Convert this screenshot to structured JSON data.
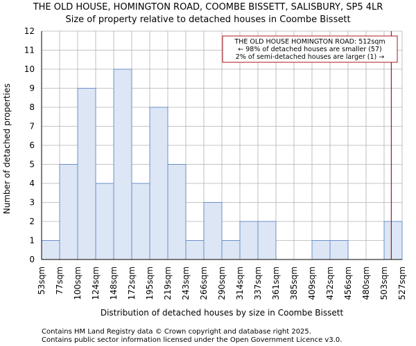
{
  "chart_data": {
    "type": "bar",
    "title": "THE OLD HOUSE, HOMINGTON ROAD, COOMBE BISSETT, SALISBURY, SP5 4LR",
    "subtitle": "Size of property relative to detached houses in Coombe Bissett",
    "xlabel": "Distribution of detached houses by size in Coombe Bissett",
    "ylabel": "Number of detached properties",
    "x_tick_labels": [
      "53sqm",
      "77sqm",
      "100sqm",
      "124sqm",
      "148sqm",
      "172sqm",
      "195sqm",
      "219sqm",
      "243sqm",
      "266sqm",
      "290sqm",
      "314sqm",
      "337sqm",
      "361sqm",
      "385sqm",
      "409sqm",
      "432sqm",
      "456sqm",
      "480sqm",
      "503sqm",
      "527sqm"
    ],
    "values": [
      1,
      5,
      9,
      4,
      10,
      4,
      8,
      5,
      1,
      3,
      1,
      2,
      2,
      0,
      0,
      1,
      1,
      0,
      0,
      2
    ],
    "ylim": [
      0,
      12
    ],
    "y_ticks": [
      0,
      1,
      2,
      3,
      4,
      5,
      6,
      7,
      8,
      9,
      10,
      11,
      12
    ],
    "grid": true,
    "property_marker": {
      "value_sqm": 512,
      "bin_position": 19.4
    },
    "annotation": {
      "lines": [
        "THE OLD HOUSE HOMINGTON ROAD: 512sqm",
        "← 98% of detached houses are smaller (57)",
        "2% of semi-detached houses are larger (1) →"
      ]
    },
    "colors": {
      "bar_fill": "#dce6f5",
      "bar_stroke": "#6b8fc7",
      "grid": "#b0b0b0",
      "marker": "#b0151c",
      "annotation_border": "#b0151c"
    }
  },
  "footer": {
    "line1": "Contains HM Land Registry data © Crown copyright and database right 2025.",
    "line2": "Contains public sector information licensed under the Open Government Licence v3.0."
  }
}
